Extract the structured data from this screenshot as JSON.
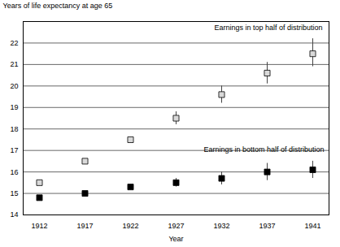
{
  "chart_data": {
    "type": "scatter",
    "y_label": "Years of life expectancy at age 65",
    "x_label": "Year",
    "categories": [
      1912,
      1917,
      1922,
      1927,
      1932,
      1937,
      1941
    ],
    "series": [
      {
        "name": "Earnings in top half of distribution",
        "color": "#d9d9d9",
        "marker": "square",
        "values": [
          15.5,
          16.5,
          17.5,
          18.5,
          19.6,
          20.6,
          21.5
        ],
        "lower": [
          15.4,
          16.4,
          17.4,
          18.2,
          19.2,
          20.1,
          20.9
        ],
        "upper": [
          15.6,
          16.6,
          17.6,
          18.8,
          20.0,
          21.1,
          22.2
        ]
      },
      {
        "name": "Earnings in bottom half of distribution",
        "color": "#000000",
        "marker": "square",
        "values": [
          14.8,
          15.0,
          15.3,
          15.5,
          15.7,
          16.0,
          16.1
        ],
        "lower": [
          14.7,
          14.9,
          15.2,
          15.3,
          15.4,
          15.6,
          15.7
        ],
        "upper": [
          14.9,
          15.1,
          15.4,
          15.7,
          16.0,
          16.4,
          16.5
        ]
      }
    ],
    "ylim": [
      14,
      23
    ],
    "yticks": [
      14,
      15,
      16,
      17,
      18,
      19,
      20,
      21,
      22
    ],
    "grid": true
  }
}
